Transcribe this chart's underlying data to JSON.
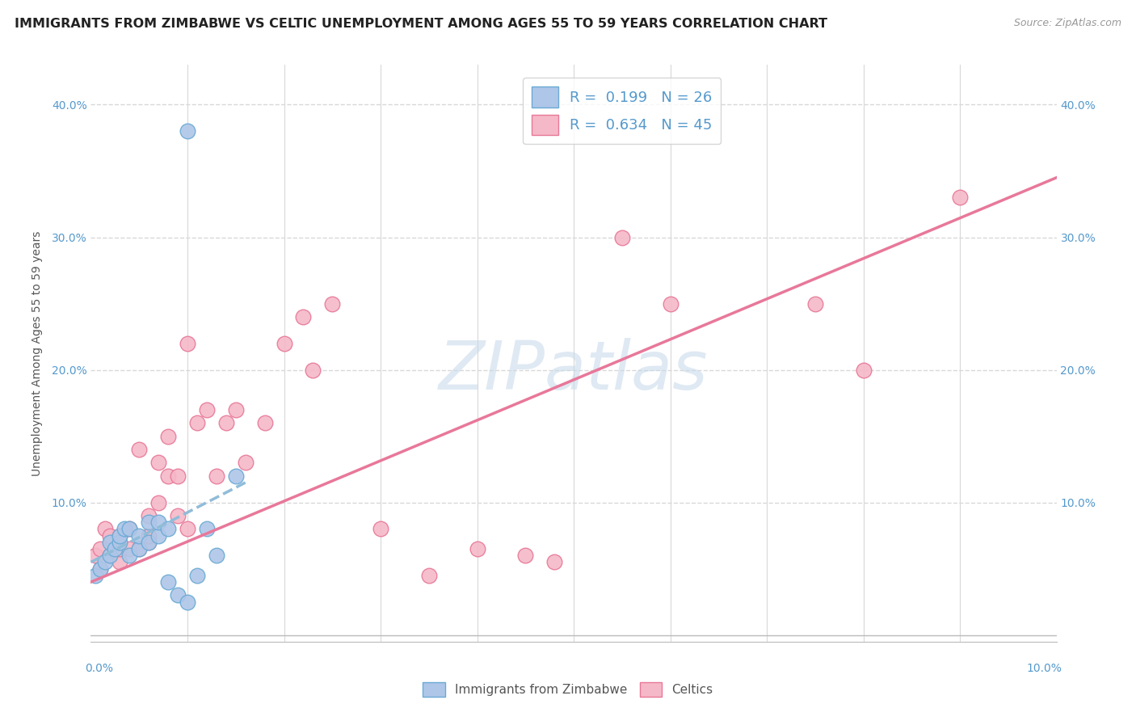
{
  "title": "IMMIGRANTS FROM ZIMBABWE VS CELTIC UNEMPLOYMENT AMONG AGES 55 TO 59 YEARS CORRELATION CHART",
  "source": "Source: ZipAtlas.com",
  "ylabel": "Unemployment Among Ages 55 to 59 years",
  "y_tick_labels": [
    "",
    "10.0%",
    "20.0%",
    "30.0%",
    "40.0%"
  ],
  "y_tick_values": [
    0,
    0.1,
    0.2,
    0.3,
    0.4
  ],
  "xlim": [
    0,
    0.1
  ],
  "ylim": [
    -0.005,
    0.43
  ],
  "legend_r1": "R =  0.199",
  "legend_n1": "N = 26",
  "legend_r2": "R =  0.634",
  "legend_n2": "N = 45",
  "color_blue_fill": "#aec6e8",
  "color_blue_edge": "#6aaad4",
  "color_pink_fill": "#f5b8c8",
  "color_pink_edge": "#e87898",
  "color_line_blue": "#90bcd8",
  "color_line_pink": "#e8789a",
  "watermark": "ZIPatlas",
  "blue_scatter_x": [
    0.0005,
    0.001,
    0.0015,
    0.002,
    0.002,
    0.0025,
    0.003,
    0.003,
    0.0035,
    0.004,
    0.004,
    0.005,
    0.005,
    0.006,
    0.006,
    0.007,
    0.007,
    0.008,
    0.008,
    0.009,
    0.01,
    0.011,
    0.012,
    0.013,
    0.015,
    0.01
  ],
  "blue_scatter_y": [
    0.045,
    0.05,
    0.055,
    0.06,
    0.07,
    0.065,
    0.07,
    0.075,
    0.08,
    0.06,
    0.08,
    0.065,
    0.075,
    0.07,
    0.085,
    0.075,
    0.085,
    0.04,
    0.08,
    0.03,
    0.025,
    0.045,
    0.08,
    0.06,
    0.12,
    0.38
  ],
  "pink_scatter_x": [
    0.0005,
    0.001,
    0.001,
    0.0015,
    0.002,
    0.002,
    0.003,
    0.003,
    0.003,
    0.004,
    0.004,
    0.005,
    0.005,
    0.006,
    0.006,
    0.006,
    0.007,
    0.007,
    0.008,
    0.008,
    0.009,
    0.009,
    0.01,
    0.01,
    0.011,
    0.012,
    0.013,
    0.014,
    0.015,
    0.016,
    0.018,
    0.02,
    0.022,
    0.023,
    0.025,
    0.03,
    0.035,
    0.04,
    0.045,
    0.048,
    0.055,
    0.06,
    0.075,
    0.08,
    0.09
  ],
  "pink_scatter_y": [
    0.06,
    0.05,
    0.065,
    0.08,
    0.06,
    0.075,
    0.055,
    0.065,
    0.075,
    0.065,
    0.08,
    0.065,
    0.14,
    0.07,
    0.075,
    0.09,
    0.1,
    0.13,
    0.12,
    0.15,
    0.12,
    0.09,
    0.08,
    0.22,
    0.16,
    0.17,
    0.12,
    0.16,
    0.17,
    0.13,
    0.16,
    0.22,
    0.24,
    0.2,
    0.25,
    0.08,
    0.045,
    0.065,
    0.06,
    0.055,
    0.3,
    0.25,
    0.25,
    0.2,
    0.33
  ],
  "blue_trend_x": [
    0.0,
    0.016
  ],
  "blue_trend_y": [
    0.055,
    0.115
  ],
  "pink_trend_x": [
    0.0,
    0.1
  ],
  "pink_trend_y": [
    0.04,
    0.345
  ],
  "grid_color": "#d8d8d8",
  "title_fontsize": 11.5,
  "axis_label_fontsize": 10,
  "tick_fontsize": 10,
  "legend_fontsize": 13,
  "marker_size": 180
}
